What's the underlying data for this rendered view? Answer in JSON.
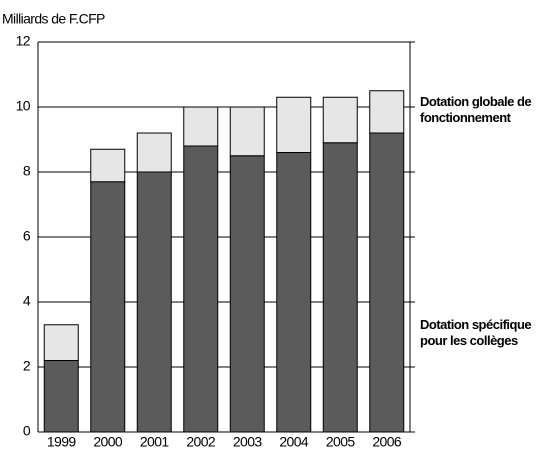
{
  "chart_data": {
    "type": "stacked_bar",
    "y_axis_label": "Milliards de F.CFP",
    "categories": [
      "1999",
      "2000",
      "2001",
      "2002",
      "2003",
      "2004",
      "2005",
      "2006"
    ],
    "series": [
      {
        "name": "Dotation spécifique pour les collèges",
        "color": "#5b5b5b",
        "values": [
          2.2,
          7.7,
          8.0,
          8.8,
          8.5,
          8.6,
          8.9,
          9.2
        ]
      },
      {
        "name": "Dotation globale de fonctionnement",
        "color": "#e6e6e6",
        "values": [
          1.1,
          1.0,
          1.2,
          1.2,
          1.5,
          1.7,
          1.4,
          1.3
        ]
      }
    ],
    "ylim": [
      0,
      12
    ],
    "yticks": [
      0,
      2,
      4,
      6,
      8,
      10,
      12
    ],
    "grid": true
  }
}
